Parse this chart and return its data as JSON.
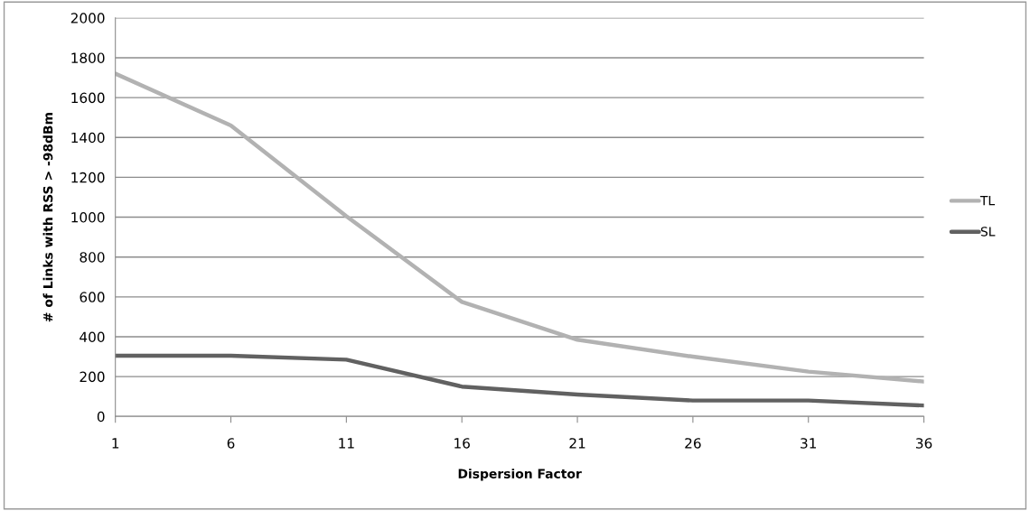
{
  "chart_data": {
    "type": "line",
    "xlabel": "Dispersion Factor",
    "ylabel": "# of Links with RSS > -98dBm",
    "categories": [
      "1",
      "6",
      "11",
      "16",
      "21",
      "26",
      "31",
      "36"
    ],
    "series": [
      {
        "name": "TL",
        "color": "#b2b2b2",
        "values": [
          1720,
          1460,
          1005,
          575,
          385,
          300,
          225,
          175
        ]
      },
      {
        "name": "SL",
        "color": "#616161",
        "values": [
          305,
          305,
          285,
          150,
          110,
          80,
          80,
          55
        ]
      }
    ],
    "ylim": [
      0,
      2000
    ],
    "yticks": [
      0,
      200,
      400,
      600,
      800,
      1000,
      1200,
      1400,
      1600,
      1800,
      2000
    ],
    "grid": "y",
    "legend": "right",
    "marker": "none",
    "line_style": "solid"
  }
}
